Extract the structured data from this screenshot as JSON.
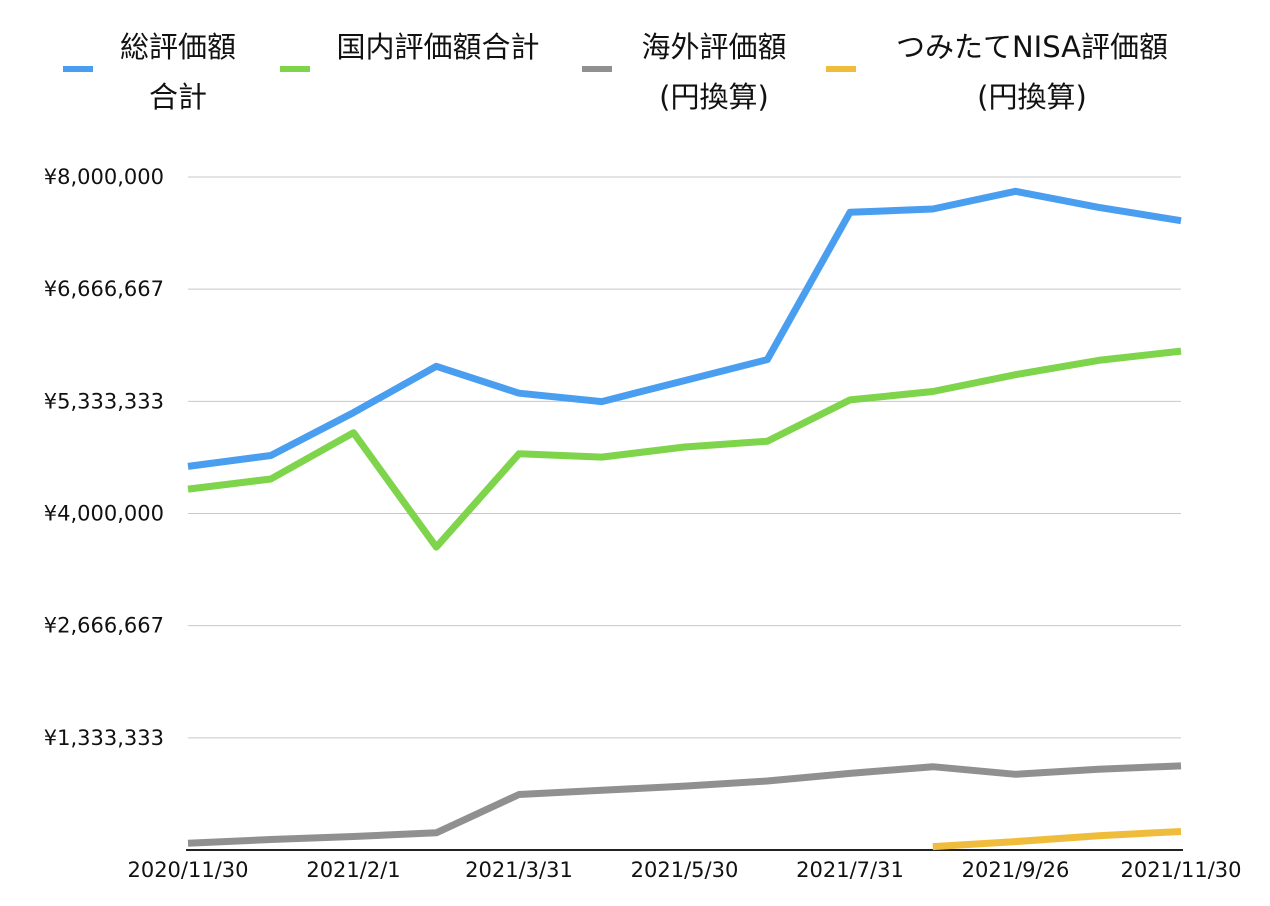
{
  "chart_data": {
    "type": "line",
    "title": "",
    "xlabel": "",
    "ylabel": "",
    "x": [
      "2020/11/30",
      "2020/12/31",
      "2021/2/1",
      "2021/3/1",
      "2021/3/31",
      "2021/4/30",
      "2021/5/30",
      "2021/6/30",
      "2021/7/31",
      "2021/8/31",
      "2021/9/26",
      "2021/10/31",
      "2021/11/30"
    ],
    "x_tick_labels": [
      "2020/11/30",
      "2021/2/1",
      "2021/3/31",
      "2021/5/30",
      "2021/7/31",
      "2021/9/26",
      "2021/11/30"
    ],
    "y_tick_labels": [
      "¥1,333,333",
      "¥2,666,667",
      "¥4,000,000",
      "¥5,333,333",
      "¥6,666,667",
      "¥8,000,000"
    ],
    "ylim": [
      0,
      8000000
    ],
    "grid": true,
    "legend_position": "top",
    "series": [
      {
        "name": "総評価額合計",
        "legend_lines": [
          "総評価額",
          "合計"
        ],
        "color": "#4a9ef0",
        "values": [
          4560000,
          4690000,
          5200000,
          5750000,
          5430000,
          5330000,
          5580000,
          5830000,
          7580000,
          7620000,
          7830000,
          7640000,
          7480000
        ]
      },
      {
        "name": "国内評価額合計",
        "legend_lines": [
          "国内評価額合計"
        ],
        "color": "#7ed44a",
        "values": [
          4290000,
          4410000,
          4960000,
          3600000,
          4710000,
          4670000,
          4790000,
          4860000,
          5350000,
          5450000,
          5650000,
          5820000,
          5930000
        ]
      },
      {
        "name": "海外評価額(円換算)",
        "legend_lines": [
          "海外評価額",
          "(円換算)"
        ],
        "color": "#909090",
        "values": [
          80000,
          125000,
          160000,
          205000,
          660000,
          710000,
          760000,
          820000,
          910000,
          990000,
          900000,
          960000,
          1000000
        ]
      },
      {
        "name": "つみたてNISA評価額(円換算)",
        "legend_lines": [
          "つみたてNISA評価額",
          "(円換算)"
        ],
        "color": "#f0bc3c",
        "values": [
          null,
          null,
          null,
          null,
          null,
          null,
          null,
          null,
          null,
          40000,
          100000,
          170000,
          220000
        ]
      }
    ]
  }
}
